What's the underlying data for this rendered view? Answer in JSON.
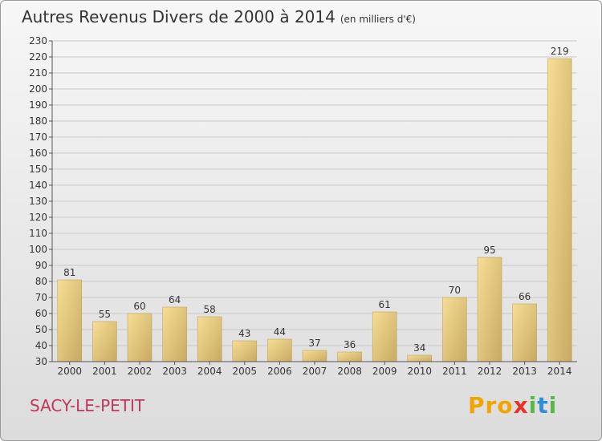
{
  "title": "Autres Revenus Divers de 2000 à 2014",
  "unit_note": "(en milliers d'€)",
  "commune": "SACY-LE-PETIT",
  "brand": {
    "text": "Proxiti",
    "colors": [
      "#f0a500",
      "#2e8fd6",
      "#58b847",
      "#e5352b"
    ]
  },
  "chart_data": {
    "type": "bar",
    "categories": [
      "2000",
      "2001",
      "2002",
      "2003",
      "2004",
      "2005",
      "2006",
      "2007",
      "2008",
      "2009",
      "2010",
      "2011",
      "2012",
      "2013",
      "2014"
    ],
    "values": [
      81,
      55,
      60,
      64,
      58,
      43,
      44,
      37,
      36,
      61,
      34,
      70,
      95,
      66,
      219
    ],
    "ylim": [
      30,
      230
    ],
    "yticks": [
      30,
      40,
      50,
      60,
      70,
      80,
      90,
      100,
      110,
      120,
      130,
      140,
      150,
      160,
      170,
      180,
      190,
      200,
      210,
      220,
      230
    ],
    "grid": true,
    "bar_color": "#e6c97f"
  }
}
